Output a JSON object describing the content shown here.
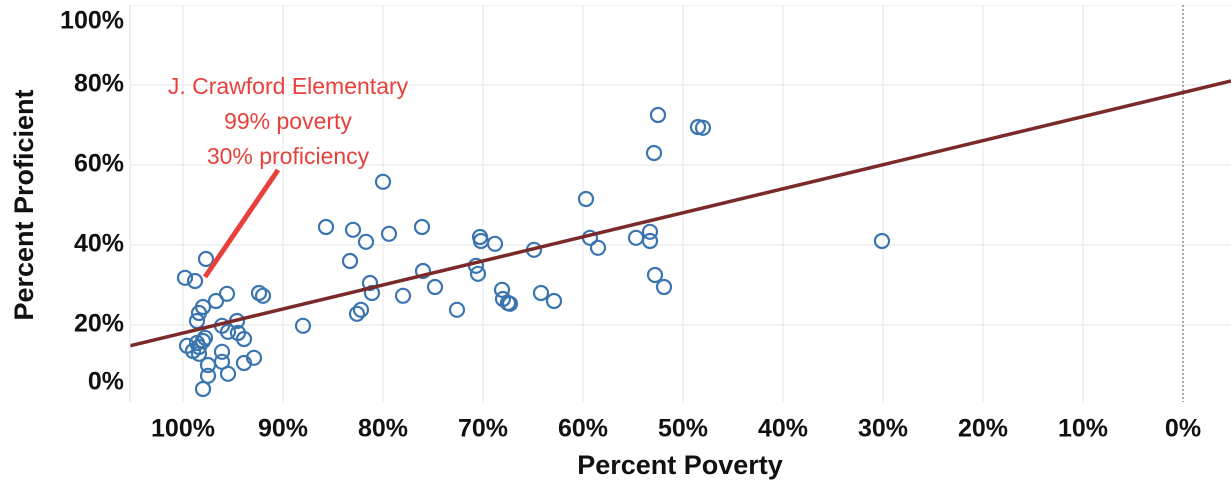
{
  "chart_data": {
    "type": "scatter",
    "xlabel": "Percent Poverty",
    "ylabel": "Percent Proficient",
    "xlim": [
      105.3,
      -4.8
    ],
    "ylim": [
      0,
      100
    ],
    "xticks": [
      {
        "value": 100,
        "label": "100%"
      },
      {
        "value": 90,
        "label": "90%"
      },
      {
        "value": 80,
        "label": "80%"
      },
      {
        "value": 70,
        "label": "70%"
      },
      {
        "value": 60,
        "label": "60%"
      },
      {
        "value": 50,
        "label": "50%"
      },
      {
        "value": 40,
        "label": "40%"
      },
      {
        "value": 30,
        "label": "30%"
      },
      {
        "value": 20,
        "label": "20%"
      },
      {
        "value": 10,
        "label": "10%"
      },
      {
        "value": 0,
        "label": "0%"
      }
    ],
    "yticks": [
      {
        "value": 0,
        "label": "0%"
      },
      {
        "value": 20,
        "label": "20%"
      },
      {
        "value": 40,
        "label": "40%"
      },
      {
        "value": 60,
        "label": "60%"
      },
      {
        "value": 80,
        "label": "80%"
      },
      {
        "value": 100,
        "label": "100%"
      }
    ],
    "grid": true,
    "series": [
      {
        "color": "#3a75b0",
        "x": [
          99.8,
          98.8,
          97.7,
          98.0,
          98.4,
          98.6,
          96.7,
          95.6,
          99.6,
          99.0,
          98.4,
          98.6,
          98.0,
          97.8,
          98.4,
          96.1,
          94.6,
          94.5,
          93.9,
          95.5,
          96.1,
          96.1,
          97.5,
          97.5,
          95.5,
          93.9,
          92.9,
          98.0,
          92.4,
          92.0,
          88.0,
          85.7,
          83.0,
          83.3,
          81.7,
          81.3,
          81.1,
          82.6,
          82.2,
          80.0,
          79.4,
          78.0,
          76.1,
          76.0,
          74.8,
          72.6,
          70.3,
          70.2,
          68.8,
          70.7,
          70.5,
          68.1,
          68.0,
          67.5,
          67.3,
          64.9,
          64.2,
          62.9,
          59.7,
          59.3,
          58.5,
          54.7,
          53.3,
          53.3,
          52.8,
          51.9,
          52.5,
          52.9,
          48.5,
          48.0,
          30.1
        ],
        "values": [
          31.8,
          31.0,
          36.5,
          24.5,
          23.0,
          21.0,
          26.0,
          27.8,
          14.8,
          13.5,
          12.8,
          15.5,
          16.0,
          16.8,
          14.5,
          19.8,
          21.0,
          18.0,
          16.5,
          18.3,
          13.3,
          10.8,
          10.0,
          7.3,
          7.8,
          10.5,
          11.8,
          4.0,
          28.0,
          27.3,
          19.8,
          44.5,
          43.8,
          36.0,
          40.8,
          30.5,
          28.0,
          22.8,
          23.8,
          55.8,
          42.8,
          27.3,
          44.5,
          33.5,
          29.5,
          23.8,
          42.0,
          41.0,
          40.3,
          34.8,
          32.8,
          28.8,
          26.5,
          25.5,
          25.3,
          38.8,
          28.0,
          26.0,
          51.5,
          41.8,
          39.3,
          41.8,
          43.3,
          41.0,
          32.5,
          29.5,
          72.5,
          63.0,
          69.5,
          69.3,
          41.0
        ]
      }
    ],
    "trendline": {
      "color": "#7b2a2a",
      "x": [
        105.3,
        -4.8
      ],
      "values": [
        14.8,
        81.0
      ]
    },
    "annotation": {
      "color": "#e8413c",
      "lines": [
        "J. Crawford Elementary",
        "99% poverty",
        "30% proficiency"
      ]
    }
  }
}
